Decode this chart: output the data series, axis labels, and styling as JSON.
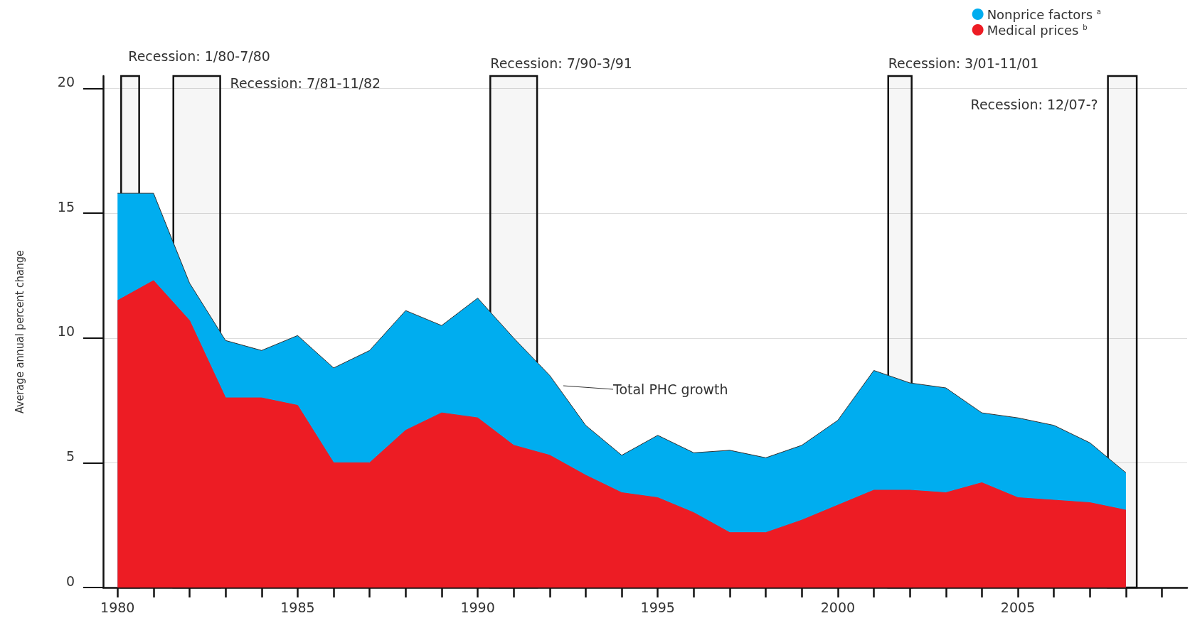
{
  "chart_data": {
    "type": "area",
    "ylabel": "Average annual percent change",
    "stacked": true,
    "marker": "none",
    "grid": "y",
    "legend": "top right",
    "x": [
      1980,
      1981,
      1982,
      1983,
      1984,
      1985,
      1986,
      1987,
      1988,
      1989,
      1990,
      1991,
      1992,
      1993,
      1994,
      1995,
      1996,
      1997,
      1998,
      1999,
      2000,
      2001,
      2002,
      2003,
      2004,
      2005,
      2006,
      2007,
      2008
    ],
    "series": [
      {
        "name": "Medical prices $^{b}$",
        "color": "#ed1c24",
        "values": [
          11.5,
          12.3,
          10.7,
          7.6,
          7.6,
          7.3,
          5.0,
          5.0,
          6.3,
          7.0,
          6.8,
          5.7,
          5.3,
          4.5,
          3.8,
          3.6,
          3.0,
          2.2,
          2.2,
          2.7,
          3.3,
          3.9,
          3.9,
          3.8,
          4.2,
          3.6,
          3.5,
          3.4,
          3.1
        ]
      },
      {
        "name": "Nonprice factors $^{a}$",
        "color": "#00adef",
        "values": [
          4.3,
          3.5,
          1.5,
          2.3,
          1.9,
          2.8,
          3.8,
          4.5,
          4.8,
          3.5,
          4.8,
          4.3,
          3.2,
          2.0,
          1.5,
          2.5,
          2.4,
          3.3,
          3.0,
          3.0,
          3.4,
          4.8,
          4.3,
          4.2,
          2.8,
          3.2,
          3.0,
          2.4,
          1.5
        ]
      }
    ],
    "xlim": [
      1979.6,
      2009.7
    ],
    "xticks": [
      1980,
      {
        "value": 1981,
        "label": null
      },
      {
        "value": 1982,
        "label": null
      },
      {
        "value": 1983,
        "label": null
      },
      {
        "value": 1984,
        "label": null
      },
      1985,
      {
        "value": 1986,
        "label": null
      },
      {
        "value": 1987,
        "label": null
      },
      {
        "value": 1988,
        "label": null
      },
      {
        "value": 1989,
        "label": null
      },
      1990,
      {
        "value": 1991,
        "label": null
      },
      {
        "value": 1992,
        "label": null
      },
      {
        "value": 1993,
        "label": null
      },
      {
        "value": 1994,
        "label": null
      },
      1995,
      {
        "value": 1996,
        "label": null
      },
      {
        "value": 1997,
        "label": null
      },
      {
        "value": 1998,
        "label": null
      },
      {
        "value": 1999,
        "label": null
      },
      2000,
      {
        "value": 2001,
        "label": null
      },
      {
        "value": 2002,
        "label": null
      },
      {
        "value": 2003,
        "label": null
      },
      {
        "value": 2004,
        "label": null
      },
      2005,
      {
        "value": 2006,
        "label": null
      },
      {
        "value": 2007,
        "label": null
      },
      {
        "value": 2008,
        "label": null
      },
      {
        "value": 2009,
        "label": null
      }
    ],
    "ylim": [
      0,
      20.5
    ],
    "yticks": [
      0,
      5,
      10,
      15,
      20
    ],
    "bands": [
      {
        "axis": "x",
        "from": 1980.1,
        "to": 1980.6,
        "label": "Recession: 1/80-7/80",
        "color": "#111111"
      },
      {
        "axis": "x",
        "from": 1981.55,
        "to": 1982.85,
        "label": "Recession: 7/81-11/82",
        "color": "#111111"
      },
      {
        "axis": "x",
        "from": 1990.35,
        "to": 1991.65,
        "label": "Recession: 7/90-3/91",
        "color": "#111111"
      },
      {
        "axis": "x",
        "from": 2001.4,
        "to": 2002.05,
        "label": "Recession: 3/01-11/01",
        "color": "#111111"
      },
      {
        "axis": "x",
        "from": 2007.5,
        "to": 2008.3,
        "label": "Recession: 12/07-?",
        "color": "#111111"
      }
    ],
    "annotations": [
      "Total PHC growth"
    ]
  }
}
